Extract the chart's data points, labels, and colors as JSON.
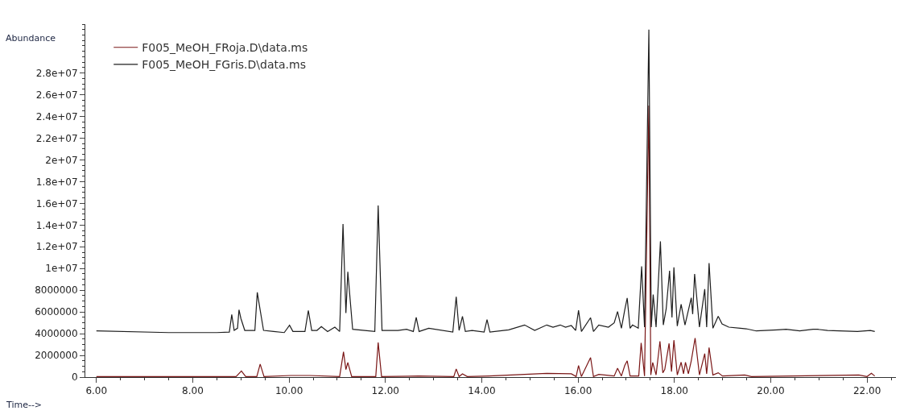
{
  "chart_data": {
    "type": "line",
    "xlabel": "Time-->",
    "ylabel": "Abundance",
    "xlim": [
      5.77,
      22.6
    ],
    "ylim": [
      0,
      32500000
    ],
    "xticks": [
      {
        "value": 6,
        "label": "6.00"
      },
      {
        "value": 8,
        "label": "8.00"
      },
      {
        "value": 10,
        "label": "10.00"
      },
      {
        "value": 12,
        "label": "12.00"
      },
      {
        "value": 14,
        "label": "14.00"
      },
      {
        "value": 16,
        "label": "16.00"
      },
      {
        "value": 18,
        "label": "18.00"
      },
      {
        "value": 20,
        "label": "20.00"
      },
      {
        "value": 22,
        "label": "22.00"
      }
    ],
    "yticks": [
      0,
      2000000,
      4000000,
      6000000,
      8000000,
      {
        "value": 10000000,
        "label": "1e+07"
      },
      {
        "value": 12000000,
        "label": "1.2e+07"
      },
      {
        "value": 14000000,
        "label": "1.4e+07"
      },
      {
        "value": 16000000,
        "label": "1.6e+07"
      },
      {
        "value": 18000000,
        "label": "1.8e+07"
      },
      {
        "value": 20000000,
        "label": "2e+07"
      },
      {
        "value": 22000000,
        "label": "2.2e+07"
      },
      {
        "value": 24000000,
        "label": "2.4e+07"
      },
      {
        "value": 26000000,
        "label": "2.6e+07"
      },
      {
        "value": 28000000,
        "label": "2.8e+07"
      }
    ],
    "legend": "top left",
    "marker": "none",
    "line_style": "solid",
    "series": [
      {
        "name": "F005_MeOH_FRoja.D\\data.ms",
        "color": "#7a1616",
        "x": [
          6.0,
          8.9,
          9.01,
          9.1,
          9.33,
          9.4,
          9.48,
          10.04,
          10.43,
          11.05,
          11.13,
          11.18,
          11.22,
          11.3,
          11.8,
          11.85,
          11.92,
          12.69,
          13.42,
          13.47,
          13.53,
          13.6,
          13.7,
          14.15,
          15.35,
          15.86,
          15.96,
          16.01,
          16.07,
          16.26,
          16.32,
          16.43,
          16.75,
          16.82,
          16.9,
          16.97,
          17.02,
          17.08,
          17.26,
          17.31,
          17.38,
          17.47,
          17.51,
          17.55,
          17.62,
          17.7,
          17.76,
          17.8,
          17.89,
          17.94,
          17.99,
          18.06,
          18.14,
          18.19,
          18.23,
          18.29,
          18.35,
          18.43,
          18.52,
          18.63,
          18.67,
          18.72,
          18.8,
          18.91,
          19.0,
          19.46,
          19.6,
          21.83,
          22.0,
          22.09,
          22.16
        ],
        "values": [
          50000,
          50000,
          570000,
          50000,
          50000,
          1200000,
          50000,
          150000,
          150000,
          50000,
          2330000,
          700000,
          1340000,
          50000,
          50000,
          3180000,
          50000,
          100000,
          50000,
          750000,
          50000,
          300000,
          50000,
          100000,
          350000,
          300000,
          50000,
          1070000,
          50000,
          1800000,
          50000,
          250000,
          100000,
          820000,
          100000,
          1070000,
          1500000,
          100000,
          100000,
          3150000,
          100000,
          25000000,
          200000,
          1340000,
          200000,
          3300000,
          400000,
          700000,
          3100000,
          500000,
          3400000,
          200000,
          1370000,
          300000,
          1370000,
          300000,
          1500000,
          3600000,
          200000,
          2160000,
          300000,
          2730000,
          200000,
          400000,
          100000,
          200000,
          50000,
          200000,
          50000,
          350000,
          100000
        ]
      },
      {
        "name": "F005_MeOH_FGris.D\\data.ms",
        "color": "#1e1e1e",
        "x": [
          6.0,
          7.5,
          8.5,
          8.76,
          8.81,
          8.86,
          8.93,
          8.96,
          9.0,
          9.08,
          9.29,
          9.34,
          9.38,
          9.47,
          9.68,
          9.9,
          10.01,
          10.08,
          10.33,
          10.4,
          10.47,
          10.58,
          10.67,
          10.8,
          10.95,
          11.05,
          11.12,
          11.18,
          11.22,
          11.32,
          11.78,
          11.85,
          11.93,
          12.26,
          12.44,
          12.58,
          12.64,
          12.7,
          12.9,
          13.4,
          13.47,
          13.53,
          13.6,
          13.66,
          13.8,
          14.05,
          14.11,
          14.17,
          14.45,
          14.56,
          14.89,
          15.1,
          15.35,
          15.48,
          15.63,
          15.74,
          15.86,
          15.95,
          16.01,
          16.07,
          16.26,
          16.32,
          16.43,
          16.63,
          16.75,
          16.82,
          16.9,
          16.97,
          17.02,
          17.08,
          17.13,
          17.25,
          17.32,
          17.38,
          17.47,
          17.52,
          17.56,
          17.62,
          17.71,
          17.77,
          17.83,
          17.9,
          17.95,
          17.99,
          18.06,
          18.14,
          18.22,
          18.35,
          18.38,
          18.42,
          18.52,
          18.63,
          18.67,
          18.72,
          18.8,
          18.91,
          18.99,
          19.13,
          19.37,
          19.49,
          19.7,
          20.14,
          20.32,
          20.6,
          20.88,
          20.97,
          21.18,
          21.8,
          22.07,
          22.16
        ],
        "values": [
          4250000,
          4100000,
          4100000,
          4150000,
          5760000,
          4300000,
          4500000,
          6200000,
          5400000,
          4300000,
          4300000,
          7800000,
          6700000,
          4300000,
          4200000,
          4100000,
          4770000,
          4200000,
          4200000,
          6140000,
          4300000,
          4300000,
          4650000,
          4200000,
          4600000,
          4200000,
          14100000,
          5900000,
          9700000,
          4400000,
          4200000,
          15800000,
          4300000,
          4300000,
          4400000,
          4200000,
          5500000,
          4200000,
          4500000,
          4150000,
          7400000,
          4300000,
          5600000,
          4200000,
          4300000,
          4150000,
          5300000,
          4150000,
          4300000,
          4350000,
          4800000,
          4300000,
          4800000,
          4600000,
          4800000,
          4600000,
          4750000,
          4300000,
          6160000,
          4200000,
          5470000,
          4200000,
          4800000,
          4600000,
          5000000,
          6040000,
          4500000,
          6200000,
          7280000,
          4500000,
          4800000,
          4500000,
          10200000,
          4600000,
          32000000,
          4600000,
          7600000,
          4600000,
          12500000,
          4800000,
          6300000,
          9800000,
          5500000,
          10100000,
          4700000,
          6700000,
          4800000,
          7300000,
          5800000,
          9500000,
          4600000,
          8100000,
          4600000,
          10500000,
          4500000,
          5600000,
          4900000,
          4600000,
          4500000,
          4450000,
          4250000,
          4350000,
          4400000,
          4250000,
          4400000,
          4400000,
          4300000,
          4200000,
          4300000,
          4200000
        ]
      }
    ]
  }
}
